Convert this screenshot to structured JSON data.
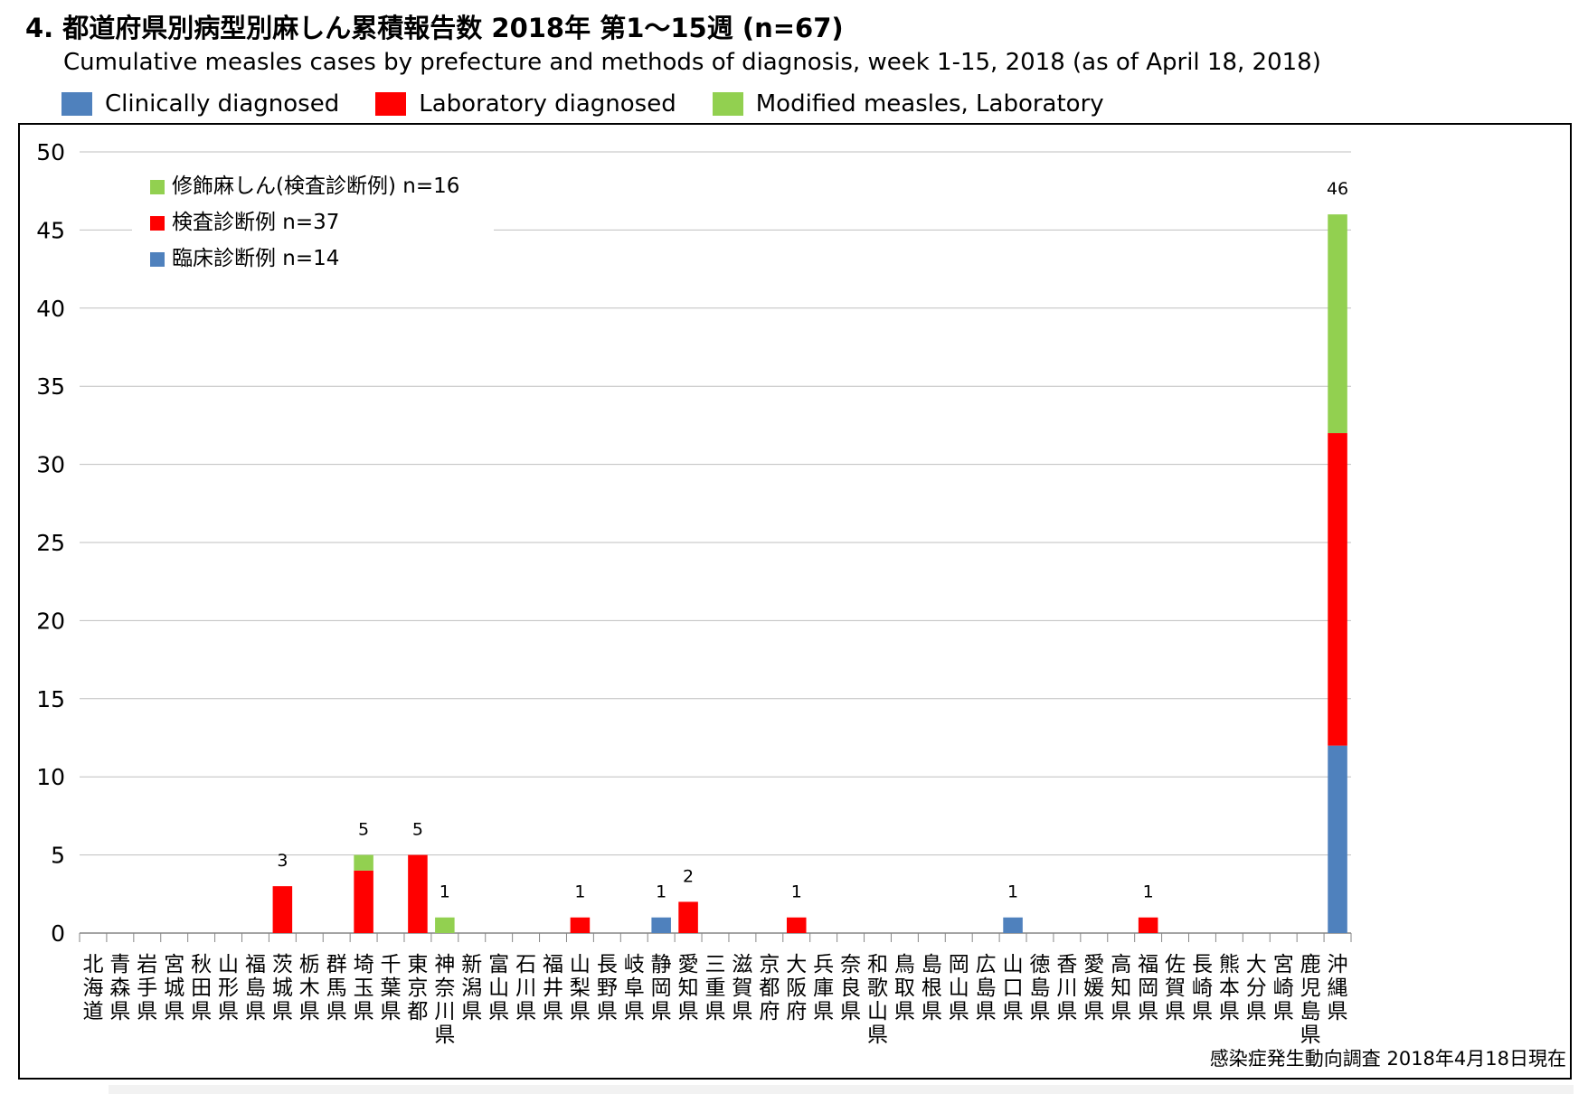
{
  "title": "4. 都道府県別病型別麻しん累積報告数 2018年 第1～15週 (n=67)",
  "subtitle": "Cumulative measles cases by prefecture and methods of diagnosis, week 1-15, 2018 (as of April 18, 2018)",
  "legend_top": [
    {
      "label": "Clinically diagnosed",
      "color": "#4f81bd"
    },
    {
      "label": "Laboratory diagnosed",
      "color": "#ff0000"
    },
    {
      "label": "Modified measles, Laboratory",
      "color": "#92d050"
    }
  ],
  "source_note": "感染症発生動向調査 2018年4月18日現在",
  "chart_data": {
    "type": "bar",
    "stacked": true,
    "ylim": [
      0,
      50
    ],
    "y_ticks": [
      0,
      5,
      10,
      15,
      20,
      25,
      30,
      35,
      40,
      45,
      50
    ],
    "grid": true,
    "legend_position": "top-left",
    "categories": [
      "北海道",
      "青森県",
      "岩手県",
      "宮城県",
      "秋田県",
      "山形県",
      "福島県",
      "茨城県",
      "栃木県",
      "群馬県",
      "埼玉県",
      "千葉県",
      "東京都",
      "神奈川県",
      "新潟県",
      "富山県",
      "石川県",
      "福井県",
      "山梨県",
      "長野県",
      "岐阜県",
      "静岡県",
      "愛知県",
      "三重県",
      "滋賀県",
      "京都府",
      "大阪府",
      "兵庫県",
      "奈良県",
      "和歌山県",
      "鳥取県",
      "島根県",
      "岡山県",
      "広島県",
      "山口県",
      "徳島県",
      "香川県",
      "愛媛県",
      "高知県",
      "福岡県",
      "佐賀県",
      "長崎県",
      "熊本県",
      "大分県",
      "宮崎県",
      "鹿児島県",
      "沖縄県"
    ],
    "series": [
      {
        "name": "臨床診断例 n=14",
        "color": "#4f81bd",
        "values": [
          0,
          0,
          0,
          0,
          0,
          0,
          0,
          0,
          0,
          0,
          0,
          0,
          0,
          0,
          0,
          0,
          0,
          0,
          0,
          0,
          0,
          1,
          0,
          0,
          0,
          0,
          0,
          0,
          0,
          0,
          0,
          0,
          0,
          0,
          1,
          0,
          0,
          0,
          0,
          0,
          0,
          0,
          0,
          0,
          0,
          0,
          12
        ]
      },
      {
        "name": "検査診断例 n=37",
        "color": "#ff0000",
        "values": [
          0,
          0,
          0,
          0,
          0,
          0,
          0,
          3,
          0,
          0,
          4,
          0,
          5,
          0,
          0,
          0,
          0,
          0,
          1,
          0,
          0,
          0,
          2,
          0,
          0,
          0,
          1,
          0,
          0,
          0,
          0,
          0,
          0,
          0,
          0,
          0,
          0,
          0,
          0,
          1,
          0,
          0,
          0,
          0,
          0,
          0,
          20
        ]
      },
      {
        "name": "修飾麻しん(検査診断例) n=16",
        "color": "#92d050",
        "values": [
          0,
          0,
          0,
          0,
          0,
          0,
          0,
          0,
          0,
          0,
          1,
          0,
          0,
          1,
          0,
          0,
          0,
          0,
          0,
          0,
          0,
          0,
          0,
          0,
          0,
          0,
          0,
          0,
          0,
          0,
          0,
          0,
          0,
          0,
          0,
          0,
          0,
          0,
          0,
          0,
          0,
          0,
          0,
          0,
          0,
          0,
          14
        ]
      }
    ],
    "totals": [
      0,
      0,
      0,
      0,
      0,
      0,
      0,
      3,
      0,
      0,
      5,
      0,
      5,
      1,
      0,
      0,
      0,
      0,
      1,
      0,
      0,
      1,
      2,
      0,
      0,
      0,
      1,
      0,
      0,
      0,
      0,
      0,
      0,
      0,
      1,
      0,
      0,
      0,
      0,
      1,
      0,
      0,
      0,
      0,
      0,
      0,
      46
    ]
  }
}
